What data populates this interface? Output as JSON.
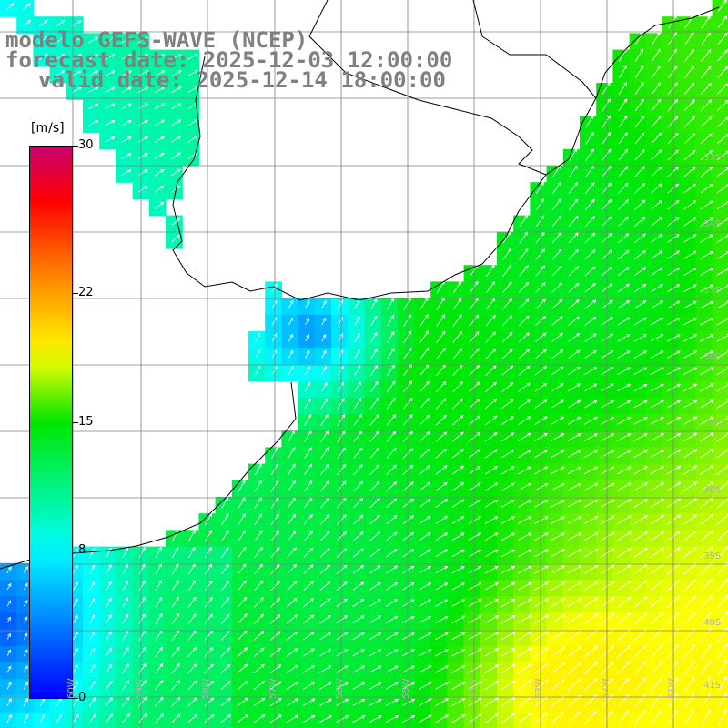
{
  "titles": {
    "model": "modelo GEFS-WAVE (NCEP)",
    "forecast": "forecast date: 2025-12-03 12:00:00",
    "valid": "valid date: 2025-12-14 18:00:00"
  },
  "colorbar": {
    "units": "[m/s]",
    "ticks": [
      "0",
      "8",
      "15",
      "22",
      "30"
    ],
    "tick_values": [
      0,
      8,
      15,
      22,
      30
    ],
    "min": 0,
    "max": 30
  },
  "lat_labels": [
    "33S",
    "34S",
    "35S",
    "36S",
    "37S",
    "38S",
    "39S",
    "40S",
    "41S"
  ],
  "lon_labels": [
    "60W",
    "59W",
    "58W",
    "57W",
    "56W",
    "55W",
    "54W",
    "53W",
    "52W",
    "51W"
  ],
  "colors": {
    "land": "#ffffff",
    "grid": "#808080",
    "coast": "#000000",
    "title": "#808080",
    "arrow": "#ffffff"
  },
  "map_extent": {
    "lon_min": -61,
    "lon_max": -50,
    "lat_min": -41.2,
    "lat_max": -32.3
  },
  "wind_direction": "toward northeast"
}
